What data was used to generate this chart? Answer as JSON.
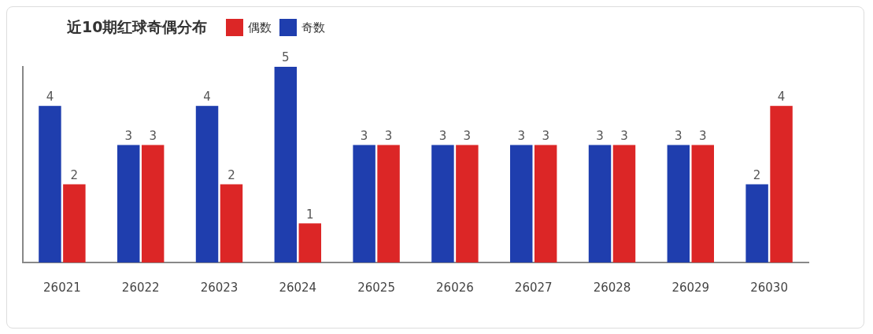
{
  "chart_data": {
    "type": "bar",
    "title": "近10期红球奇偶分布",
    "categories": [
      "26021",
      "26022",
      "26023",
      "26024",
      "26025",
      "26026",
      "26027",
      "26028",
      "26029",
      "26030"
    ],
    "series": [
      {
        "name": "奇数",
        "color": "#1f3eae",
        "values": [
          4,
          3,
          4,
          5,
          3,
          3,
          3,
          3,
          3,
          2
        ]
      },
      {
        "name": "偶数",
        "color": "#dc2626",
        "values": [
          2,
          3,
          2,
          1,
          3,
          3,
          3,
          3,
          3,
          4
        ]
      }
    ],
    "ylim": [
      0,
      5
    ],
    "data_labels": true,
    "grid": false,
    "legend": "top left",
    "tick_labels": "x"
  }
}
